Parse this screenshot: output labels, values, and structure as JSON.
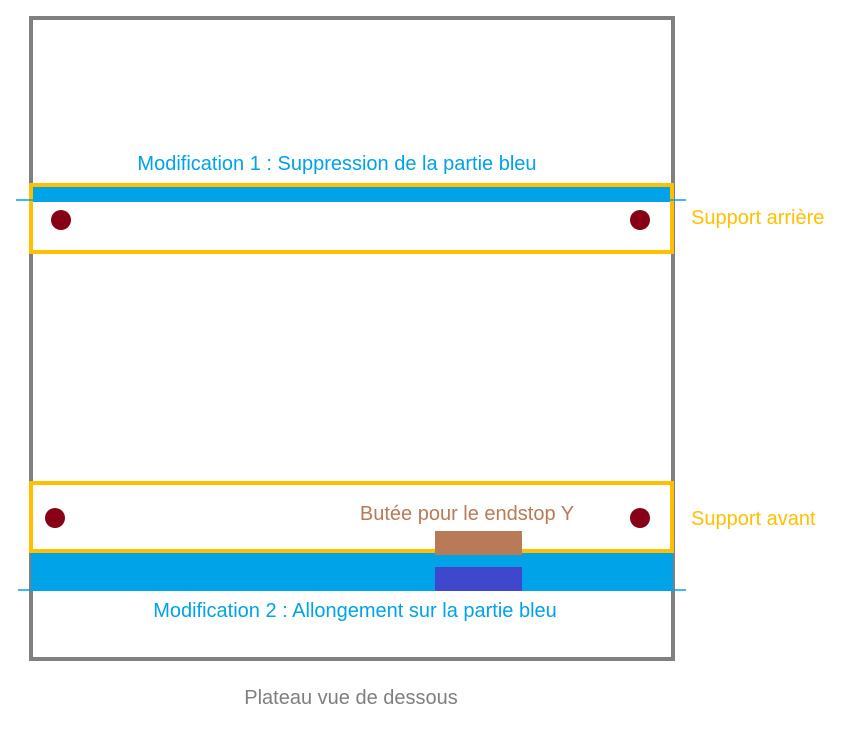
{
  "diagram": {
    "caption": "Plateau vue de dessous",
    "modification_1": "Modification 1 : Suppression de la partie bleu",
    "modification_2": "Modification 2 : Allongement sur la partie bleu",
    "support_rear_label": "Support arrière",
    "support_front_label": "Support avant",
    "endstop_label": "Butée pour le endstop Y"
  },
  "colors": {
    "plate_border": "#808080",
    "support_outline": "#ffc000",
    "blue_part": "#00a2e8",
    "endstop_block": "#b97a57",
    "endstop_base": "#3f48cc",
    "screw_hole": "#880015",
    "caption_text": "#7f7f7f"
  }
}
